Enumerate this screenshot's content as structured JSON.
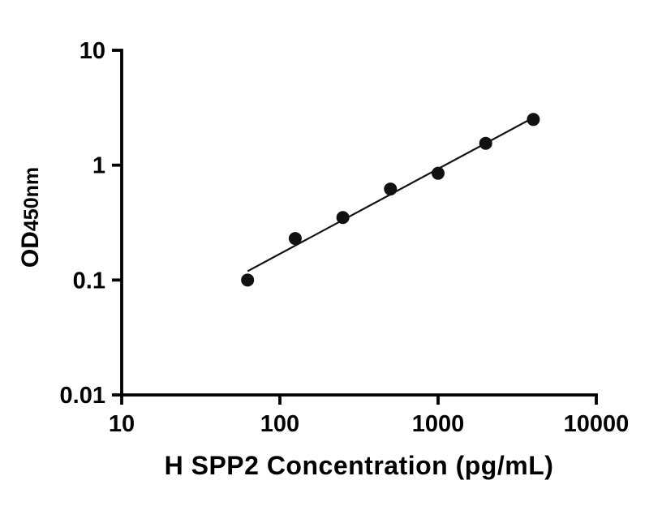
{
  "chart_data": {
    "type": "scatter",
    "title": "",
    "xlabel": "H SPP2 Concentration (pg/mL)",
    "ylabel": "OD450nm",
    "ylabel_parts": {
      "main": "OD",
      "sub": "450nm"
    },
    "x_scale": "log",
    "y_scale": "log",
    "xlim": [
      10,
      10000
    ],
    "ylim": [
      0.01,
      10
    ],
    "x_ticks": [
      10,
      100,
      1000,
      10000
    ],
    "x_tick_labels": [
      "10",
      "100",
      "1000",
      "10000"
    ],
    "y_ticks": [
      0.01,
      0.1,
      1,
      10
    ],
    "y_tick_labels": [
      "0.01",
      "0.1",
      "1",
      "10"
    ],
    "points": [
      {
        "x": 62.5,
        "y": 0.1
      },
      {
        "x": 125,
        "y": 0.23
      },
      {
        "x": 250,
        "y": 0.35
      },
      {
        "x": 500,
        "y": 0.62
      },
      {
        "x": 1000,
        "y": 0.85
      },
      {
        "x": 2000,
        "y": 1.55
      },
      {
        "x": 4000,
        "y": 2.5
      }
    ],
    "trendline": {
      "fit": "linear-loglog",
      "x_start": 62.5,
      "x_end": 4000
    },
    "marker_color": "#111111",
    "line_color": "#111111",
    "axis_color": "#000000",
    "background_color": "#ffffff",
    "grid": false,
    "legend": false
  }
}
